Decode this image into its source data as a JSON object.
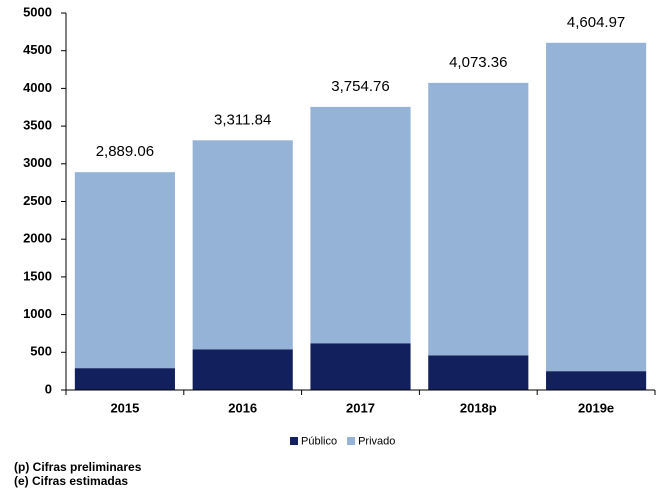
{
  "chart_data": {
    "type": "stacked_bar",
    "categories": [
      "2015",
      "2016",
      "2017",
      "2018p",
      "2019e"
    ],
    "series": [
      {
        "name": "Público",
        "color": "#13205e",
        "values": [
          290,
          540,
          620,
          460,
          250
        ]
      },
      {
        "name": "Privado",
        "color": "#95b3d7",
        "values": [
          2599.06,
          2771.84,
          3134.76,
          3613.36,
          4354.97
        ]
      }
    ],
    "totals": [
      2889.06,
      3311.84,
      3754.76,
      4073.36,
      4604.97
    ],
    "total_labels": [
      "2,889.06",
      "3,311.84",
      "3,754.76",
      "4,073.36",
      "4,604.97"
    ],
    "ylim": [
      0,
      5000
    ],
    "yticks": [
      0,
      500,
      1000,
      1500,
      2000,
      2500,
      3000,
      3500,
      4000,
      4500,
      5000
    ],
    "grid": false,
    "legend": "bottom",
    "notes": [
      "(p) Cifras preliminares",
      "(e) Cifras estimadas"
    ]
  }
}
